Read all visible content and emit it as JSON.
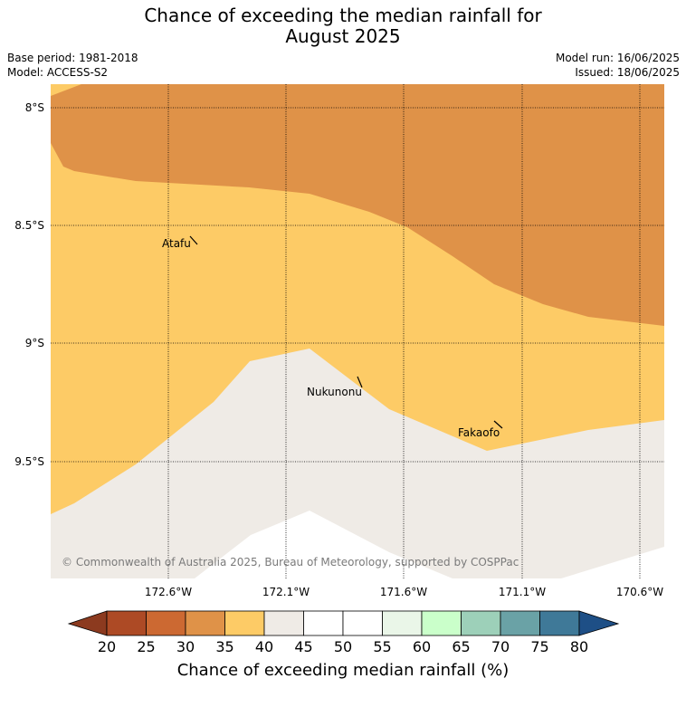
{
  "title": {
    "line1": "Chance of exceeding the median rainfall for",
    "line2": "August 2025"
  },
  "meta": {
    "base_period": "Base period: 1981-2018",
    "model": "Model: ACCESS-S2",
    "model_run": "Model run: 16/06/2025",
    "issued": "Issued: 18/06/2025"
  },
  "map": {
    "lat_labels": [
      "8°S",
      "8.5°S",
      "9°S",
      "9.5°S"
    ],
    "lon_labels": [
      "172.6°W",
      "172.1°W",
      "171.6°W",
      "171.1°W",
      "170.6°W"
    ],
    "places": [
      "Atafu",
      "Nukunonu",
      "Fakaofo"
    ],
    "credit": "© Commonwealth of Australia 2025, Bureau of Meteorology, supported by COSPPac",
    "colors": {
      "band_30_35": "#df9248",
      "band_35_40": "#fdcb66",
      "band_40_45": "#efebe6",
      "grid": "#000000"
    }
  },
  "colorbar": {
    "labels": [
      "20",
      "25",
      "30",
      "35",
      "40",
      "45",
      "50",
      "55",
      "60",
      "65",
      "70",
      "75",
      "80"
    ],
    "colors": [
      "#ad4a25",
      "#cc6932",
      "#df9248",
      "#fdcb66",
      "#efebe6",
      "#ffffff",
      "#ffffff",
      "#eaf6e8",
      "#caffca",
      "#9dd0b9",
      "#6aa2a6",
      "#3f7998"
    ],
    "under_color": "#8c3a1f",
    "over_color": "#1e4f86",
    "title": "Chance of exceeding median rainfall (%)"
  }
}
